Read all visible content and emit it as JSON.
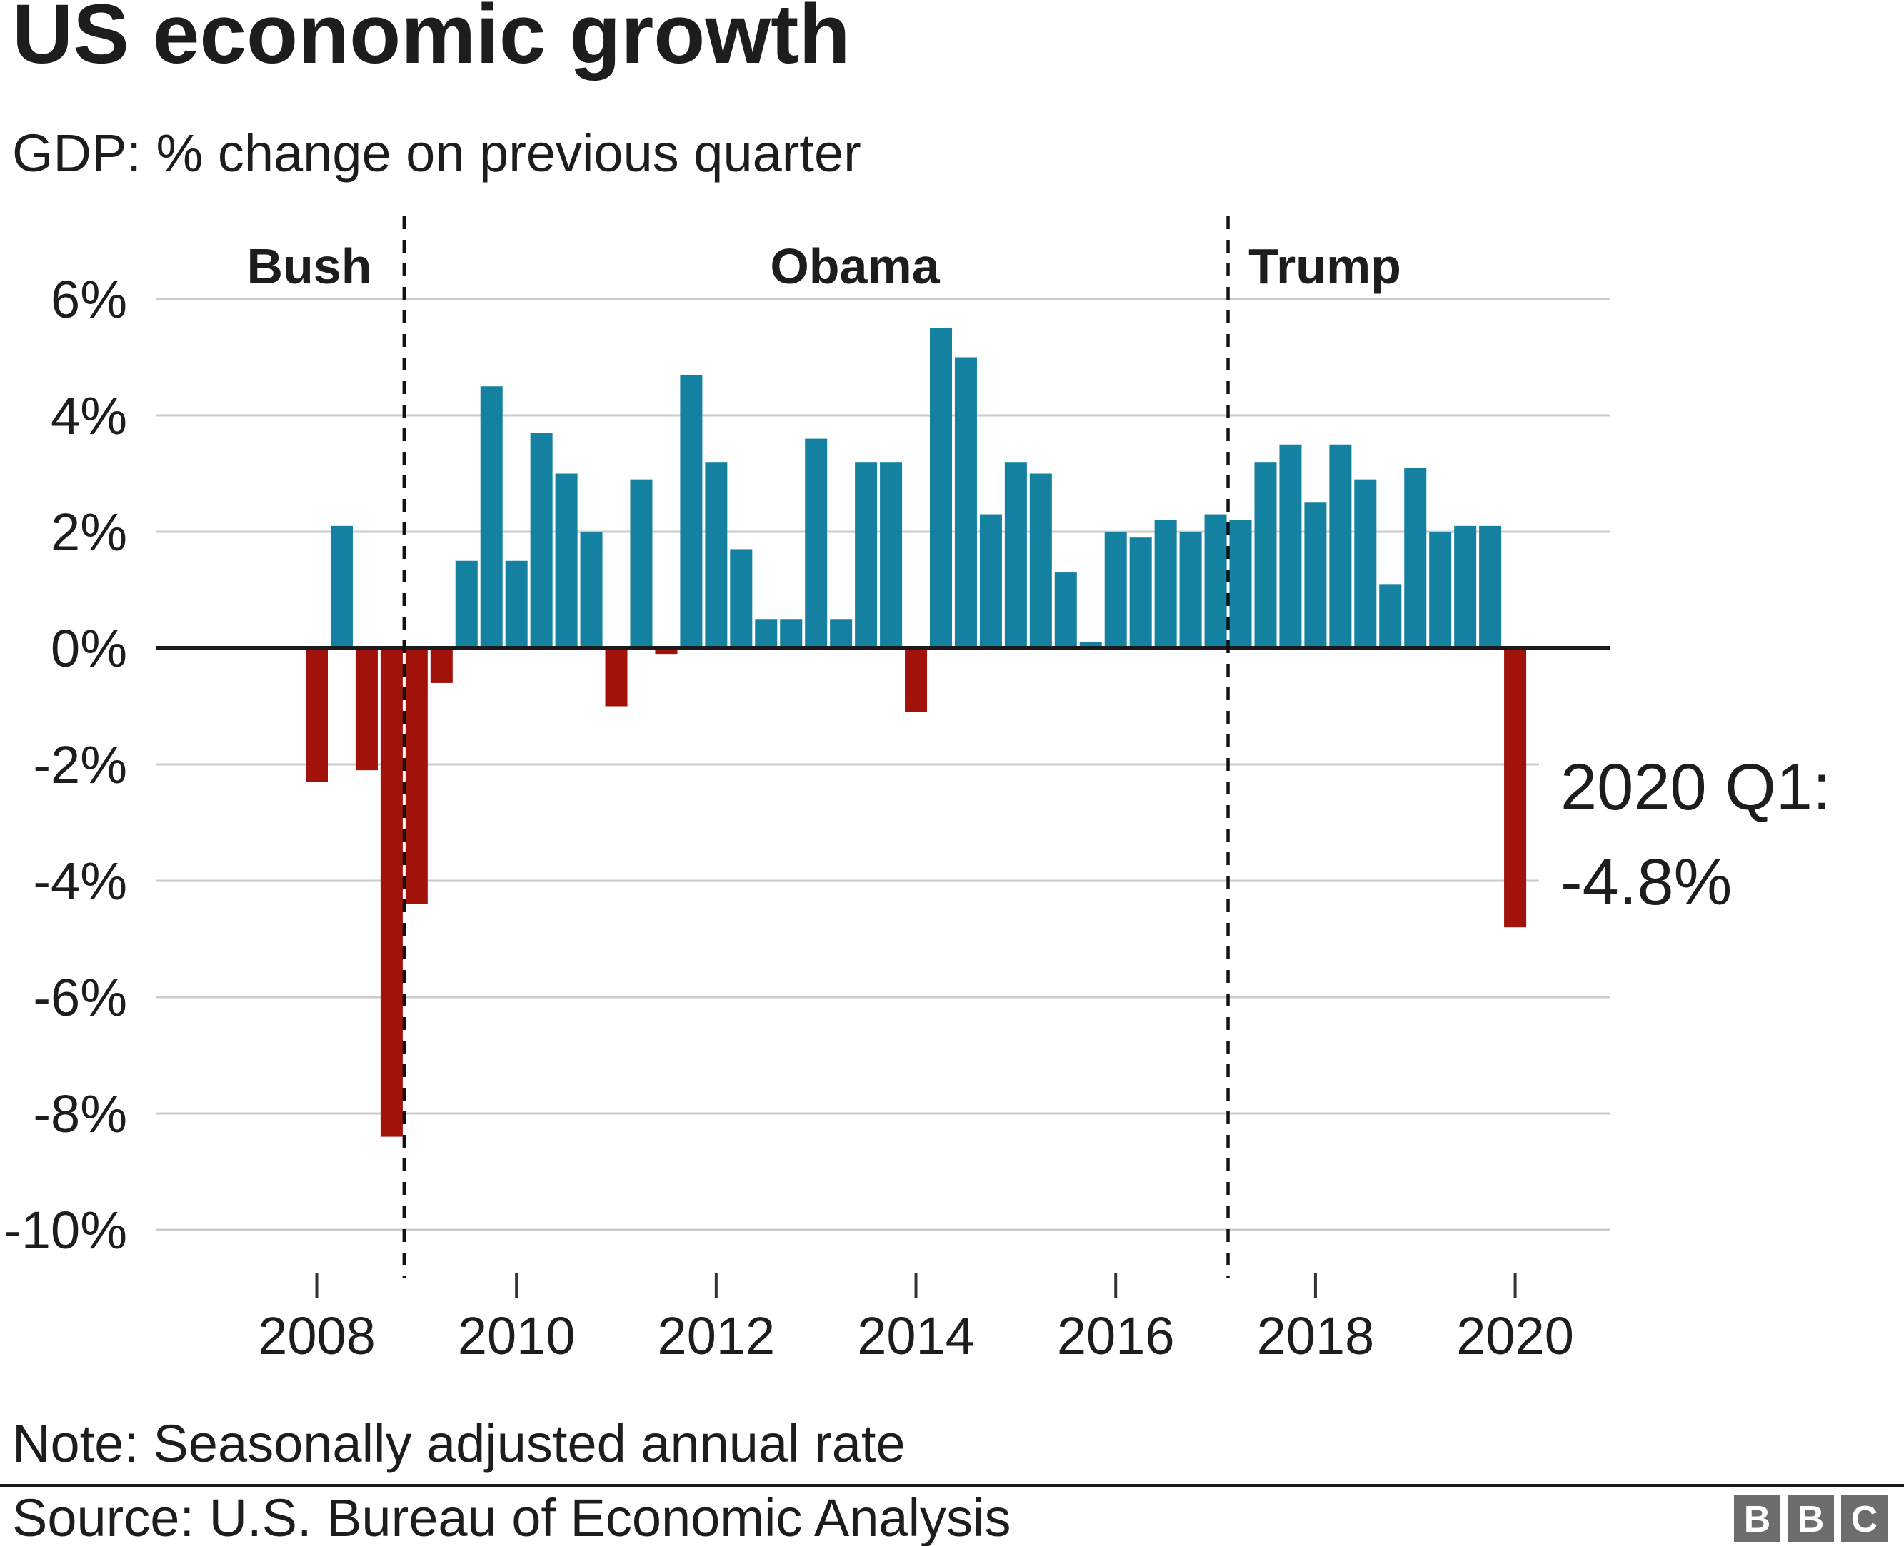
{
  "header": {
    "title": "US economic growth",
    "subtitle": "GDP: % change on previous quarter"
  },
  "chart_data": {
    "type": "bar",
    "title": "US economic growth",
    "subtitle": "GDP: % change on previous quarter",
    "x_start_year": 2008,
    "x_start_quarter": 1,
    "unit": "%",
    "values": [
      -2.3,
      2.1,
      -2.1,
      -8.4,
      -4.4,
      -0.6,
      1.5,
      4.5,
      1.5,
      3.7,
      3.0,
      2.0,
      -1.0,
      2.9,
      -0.1,
      4.7,
      3.2,
      1.7,
      0.5,
      0.5,
      3.6,
      0.5,
      3.2,
      3.2,
      -1.1,
      5.5,
      5.0,
      2.3,
      3.2,
      3.0,
      1.3,
      0.1,
      2.0,
      1.9,
      2.2,
      2.0,
      2.3,
      2.2,
      3.2,
      3.5,
      2.5,
      3.5,
      2.9,
      1.1,
      3.1,
      2.0,
      2.1,
      2.1,
      -4.8
    ],
    "ylim": [
      -10,
      6
    ],
    "y_ticks": [
      6,
      4,
      2,
      0,
      -2,
      -4,
      -6,
      -8,
      -10
    ],
    "y_tick_suffix": "%",
    "x_ticks": [
      2008,
      2010,
      2012,
      2014,
      2016,
      2018,
      2020
    ],
    "grid": true,
    "legend_position": "none",
    "colors": {
      "positive": "#1481A1",
      "negative": "#A1120A",
      "grid": "#CBCBCB",
      "zero_line": "#1A1A1A",
      "divider": "#121212",
      "text": "#1D1D1D"
    },
    "presidents": [
      {
        "name": "Bush",
        "label_x": 433
      },
      {
        "name": "Obama",
        "label_x": 1197,
        "divider_before_index": 4
      },
      {
        "name": "Trump",
        "label_x": 1855,
        "divider_before_index": 37
      }
    ],
    "annotation": {
      "line1": "2020 Q1:",
      "line2": "-4.8%",
      "color": "#A1120A"
    }
  },
  "footer": {
    "note": "Note: Seasonally adjusted annual rate",
    "source": "Source: U.S. Bureau of Economic Analysis",
    "logo": {
      "letters": [
        "B",
        "B",
        "C"
      ],
      "square_color": "#6D6D6D"
    }
  }
}
